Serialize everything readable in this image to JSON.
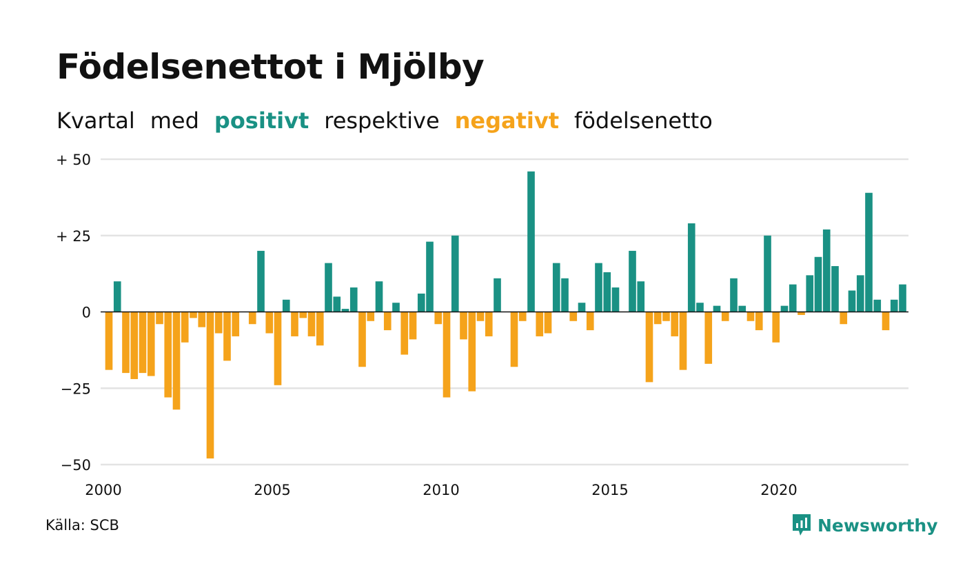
{
  "title": "Födelsenettot i Mjölby",
  "subtitle": {
    "w1": "Kvartal",
    "w2": "med",
    "positive": "positivt",
    "w3": "respektive",
    "negative": "negativt",
    "w4": "födelsenetto"
  },
  "source": "Källa: SCB",
  "brand": "Newsworthy",
  "colors": {
    "positive": "#1a9184",
    "negative": "#f5a31b",
    "grid": "#e3e3e3",
    "text": "#111111"
  },
  "chart_data": {
    "type": "bar",
    "title": "Födelsenettot i Mjölby",
    "xlabel": "",
    "ylabel": "",
    "ylim": [
      -50,
      50
    ],
    "y_ticks": [
      {
        "value": 50,
        "label": "+ 50"
      },
      {
        "value": 25,
        "label": "+ 25"
      },
      {
        "value": 0,
        "label": "0"
      },
      {
        "value": -25,
        "label": "−25"
      },
      {
        "value": -50,
        "label": "−50"
      }
    ],
    "x_ticks": [
      {
        "value": 2000,
        "label": "2000"
      },
      {
        "value": 2005,
        "label": "2005"
      },
      {
        "value": 2010,
        "label": "2010"
      },
      {
        "value": 2015,
        "label": "2015"
      },
      {
        "value": 2020,
        "label": "2020"
      }
    ],
    "grid": true,
    "start_year": 2000,
    "periods_per_year": 4,
    "values": [
      -19,
      10,
      -20,
      -22,
      -20,
      -21,
      -4,
      -28,
      -32,
      -10,
      -2,
      -5,
      -48,
      -7,
      -16,
      -8,
      0,
      -4,
      20,
      -7,
      -24,
      4,
      -8,
      -2,
      -8,
      -11,
      16,
      5,
      1,
      8,
      -18,
      -3,
      10,
      -6,
      3,
      -14,
      -9,
      6,
      23,
      -4,
      -28,
      25,
      -9,
      -26,
      -3,
      -8,
      11,
      0,
      -18,
      -3,
      46,
      -8,
      -7,
      16,
      11,
      -3,
      3,
      -6,
      16,
      13,
      8,
      0,
      20,
      10,
      -23,
      -4,
      -3,
      -8,
      -19,
      29,
      3,
      -17,
      2,
      -3,
      11,
      2,
      -3,
      -6,
      25,
      -10,
      2,
      9,
      -1,
      12,
      18,
      27,
      15,
      -4,
      7,
      12,
      39,
      4,
      -6,
      4,
      9
    ]
  }
}
